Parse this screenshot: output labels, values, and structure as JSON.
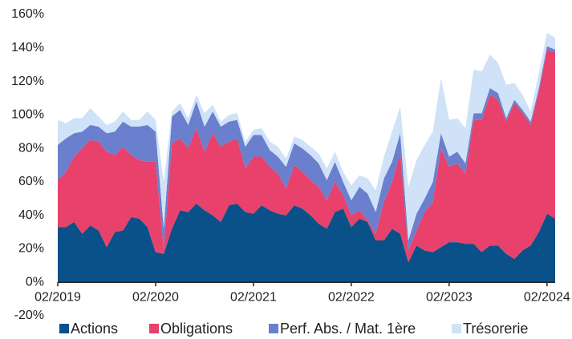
{
  "chart_data": {
    "type": "stacked_area",
    "categories": [
      "02/2019",
      null,
      null,
      null,
      null,
      null,
      null,
      null,
      null,
      null,
      null,
      null,
      "02/2020",
      null,
      null,
      null,
      null,
      null,
      null,
      null,
      null,
      null,
      null,
      null,
      "02/2021",
      null,
      null,
      null,
      null,
      null,
      null,
      null,
      null,
      null,
      null,
      null,
      "02/2022",
      null,
      null,
      null,
      null,
      null,
      null,
      null,
      null,
      null,
      null,
      null,
      "02/2023",
      null,
      null,
      null,
      null,
      null,
      null,
      null,
      null,
      null,
      null,
      null,
      "02/2024",
      null
    ],
    "series": [
      {
        "name": "Actions",
        "color": "#0b5189",
        "values": [
          33,
          33,
          36,
          29,
          34,
          31,
          21,
          30,
          31,
          39,
          38,
          33,
          18,
          17,
          32,
          43,
          42,
          47,
          43,
          40,
          36,
          46,
          47,
          42,
          41,
          46,
          43,
          41,
          40,
          46,
          44,
          40,
          35,
          32,
          42,
          44,
          33,
          38,
          36,
          25,
          25,
          32,
          29,
          12,
          22,
          19,
          18,
          21,
          24,
          24,
          23,
          23,
          18,
          22,
          22,
          17,
          14,
          19,
          22,
          30,
          41,
          38
        ]
      },
      {
        "name": "Obligations",
        "color": "#e8416b",
        "values": [
          28,
          33,
          39,
          51,
          51,
          53,
          57,
          46,
          50,
          37,
          35,
          39,
          54,
          3,
          51,
          43,
          38,
          45,
          35,
          49,
          45,
          38,
          39,
          26,
          34,
          29,
          26,
          24,
          16,
          24,
          22,
          21,
          22,
          17,
          18,
          8,
          7,
          5,
          1,
          4,
          23,
          28,
          48,
          7,
          9,
          23,
          30,
          59,
          45,
          47,
          42,
          74,
          79,
          90,
          87,
          79,
          93,
          82,
          72,
          84,
          98,
          99
        ]
      },
      {
        "name": "Perf. Abs. / Mat. 1ère",
        "color": "#6a7fcd",
        "values": [
          21,
          20,
          14,
          10,
          9,
          9,
          11,
          14,
          15,
          17,
          20,
          22,
          18,
          12,
          16,
          17,
          14,
          16,
          15,
          13,
          12,
          12,
          11,
          13,
          13,
          13,
          10,
          10,
          13,
          13,
          14,
          15,
          14,
          12,
          12,
          8,
          9,
          14,
          16,
          13,
          14,
          12,
          12,
          6,
          10,
          8,
          12,
          9,
          6,
          7,
          6,
          4,
          4,
          4,
          4,
          2,
          2,
          2,
          2,
          2,
          2,
          2
        ]
      },
      {
        "name": "Trésorerie",
        "color": "#cfe2f7",
        "values": [
          15,
          9,
          9,
          8,
          10,
          6,
          5,
          6,
          6,
          4,
          4,
          8,
          7,
          28,
          3,
          4,
          4,
          4,
          8,
          4,
          3,
          4,
          4,
          3,
          3,
          4,
          5,
          6,
          5,
          4,
          5,
          5,
          6,
          7,
          6,
          6,
          9,
          7,
          9,
          13,
          13,
          18,
          16,
          32,
          32,
          32,
          30,
          33,
          22,
          20,
          21,
          26,
          25,
          20,
          18,
          20,
          10,
          9,
          6,
          9,
          8,
          7
        ]
      }
    ],
    "ylim": [
      -20,
      160
    ],
    "yticks": [
      {
        "value": -20,
        "label": "-20%"
      },
      {
        "value": 0,
        "label": "0%"
      },
      {
        "value": 20,
        "label": "20%"
      },
      {
        "value": 40,
        "label": "40%"
      },
      {
        "value": 60,
        "label": "60%"
      },
      {
        "value": 80,
        "label": "80%"
      },
      {
        "value": 100,
        "label": "100%"
      },
      {
        "value": 120,
        "label": "120%"
      },
      {
        "value": 140,
        "label": "140%"
      },
      {
        "value": 160,
        "label": "160%"
      }
    ],
    "grid": false,
    "legend": "bottom"
  }
}
